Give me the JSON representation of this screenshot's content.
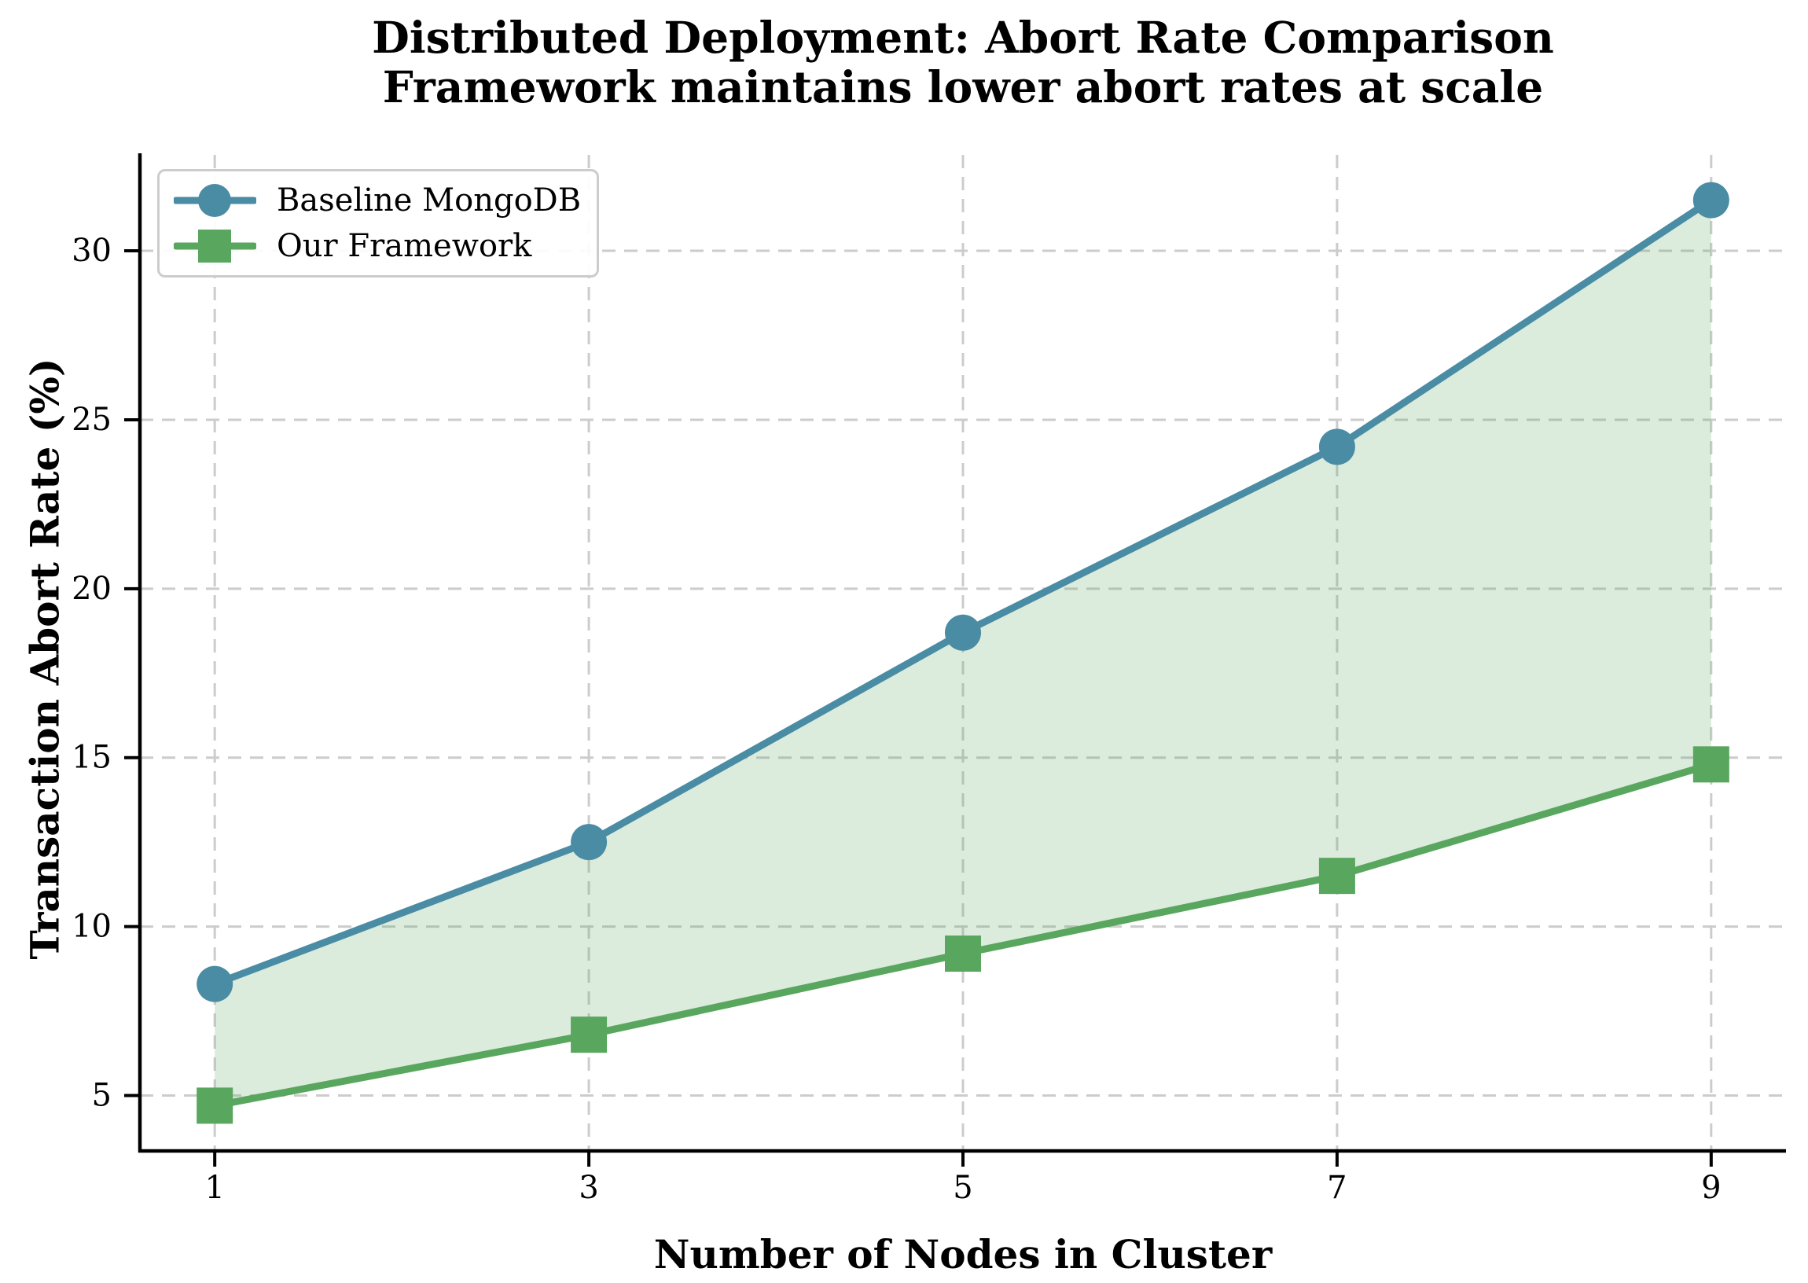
{
  "chart_data": {
    "type": "line",
    "title": "Distributed Deployment: Abort Rate Comparison",
    "subtitle": "Framework maintains lower abort rates at scale",
    "xlabel": "Number of Nodes in Cluster",
    "ylabel": "Transaction Abort Rate (%)",
    "x": [
      1,
      3,
      5,
      7,
      9
    ],
    "series": [
      {
        "name": "Baseline MongoDB",
        "values": [
          8.3,
          12.5,
          18.7,
          24.2,
          31.5
        ],
        "color": "#4a8ca4",
        "marker": "circle"
      },
      {
        "name": "Our Framework",
        "values": [
          4.7,
          6.8,
          9.2,
          11.5,
          14.8
        ],
        "color": "#59a65e",
        "marker": "square"
      }
    ],
    "fill_between": {
      "between": [
        "Baseline MongoDB",
        "Our Framework"
      ],
      "color": "rgba(89,166,94,0.22)"
    },
    "x_ticks": [
      1,
      3,
      5,
      7,
      9
    ],
    "y_ticks": [
      5,
      10,
      15,
      20,
      25,
      30
    ],
    "xlim": [
      0.6,
      9.4
    ],
    "ylim": [
      3.36,
      32.84
    ],
    "grid": true,
    "grid_style": "dashed",
    "grid_color": "#cccccc",
    "legend_position": "upper left",
    "spine_color": "#000000"
  }
}
